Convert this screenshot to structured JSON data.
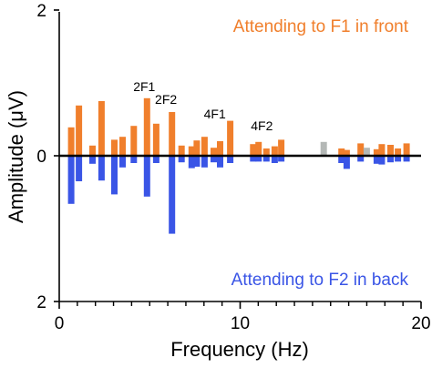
{
  "chart_data": {
    "type": "bar",
    "xlabel": "Frequency (Hz)",
    "ylabel": "Amplitude (μV)",
    "xlim": [
      0,
      20
    ],
    "ylim": [
      -2,
      2
    ],
    "x_ticks": [
      0,
      10,
      20
    ],
    "x_tick_labels": [
      "0",
      "10",
      "20"
    ],
    "y_tick_labels": [
      {
        "value": 2,
        "label": "2"
      },
      {
        "value": 0,
        "label": "0"
      },
      {
        "value": -2,
        "label": "2"
      }
    ],
    "colors": {
      "front": "#F07F2C",
      "back": "#3A55E6",
      "other": "#B4B8B6",
      "baseline": "#000000"
    },
    "legend": {
      "front_label": "Attending to F1 in front",
      "back_label": "Attending to F2 in back"
    },
    "annotations": [
      {
        "text": "2F1",
        "x": 4.7,
        "y": 0.84
      },
      {
        "text": "2F2",
        "x": 5.9,
        "y": 0.66
      },
      {
        "text": "4F1",
        "x": 8.6,
        "y": 0.46
      },
      {
        "text": "4F2",
        "x": 11.2,
        "y": 0.3
      }
    ],
    "series": [
      {
        "name": "Attending to F1 in front",
        "color": "#F07F2C",
        "x": [
          0.66,
          1.09,
          1.84,
          2.34,
          3.05,
          3.5,
          4.12,
          4.85,
          5.36,
          6.23,
          6.76,
          7.32,
          7.6,
          8.03,
          8.54,
          8.89,
          9.45,
          10.72,
          11.02,
          11.45,
          11.91,
          12.27,
          15.6,
          15.89,
          16.66,
          17.55,
          17.83,
          18.31,
          18.72,
          19.2
        ],
        "values": [
          0.39,
          0.69,
          0.14,
          0.75,
          0.22,
          0.26,
          0.41,
          0.79,
          0.44,
          0.6,
          0.14,
          0.13,
          0.21,
          0.26,
          0.11,
          0.2,
          0.48,
          0.16,
          0.19,
          0.1,
          0.13,
          0.22,
          0.1,
          0.08,
          0.17,
          0.09,
          0.16,
          0.15,
          0.1,
          0.17
        ]
      },
      {
        "name": "Attending to F2 in back",
        "color": "#3A55E6",
        "x": [
          0.66,
          1.09,
          1.84,
          2.34,
          3.05,
          3.5,
          4.12,
          4.85,
          5.36,
          6.23,
          6.76,
          7.32,
          7.6,
          8.03,
          8.54,
          8.89,
          9.45,
          10.72,
          11.02,
          11.45,
          11.91,
          12.27,
          15.6,
          15.89,
          16.66,
          17.55,
          17.83,
          18.31,
          18.72,
          19.2
        ],
        "values": [
          -0.66,
          -0.35,
          -0.11,
          -0.34,
          -0.53,
          -0.16,
          -0.1,
          -0.56,
          -0.1,
          -1.07,
          -0.09,
          -0.17,
          -0.15,
          -0.16,
          -0.09,
          -0.16,
          -0.1,
          -0.08,
          -0.08,
          -0.08,
          -0.1,
          -0.08,
          -0.1,
          -0.18,
          -0.08,
          -0.11,
          -0.12,
          -0.09,
          -0.08,
          -0.08
        ]
      },
      {
        "name": "",
        "color": "#B4B8B6",
        "x": [
          14.62,
          17.0
        ],
        "values": [
          0.19,
          0.11
        ]
      }
    ]
  }
}
